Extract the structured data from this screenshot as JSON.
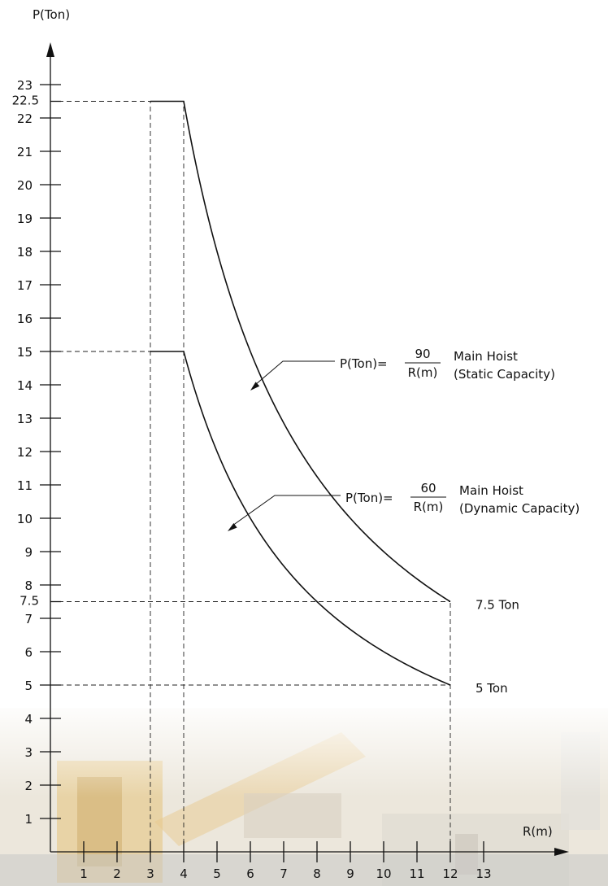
{
  "chart_data": {
    "type": "line",
    "ylabel": "P(Ton)",
    "xlabel": "R(m)",
    "xlim": [
      0,
      14
    ],
    "ylim": [
      0,
      24
    ],
    "x_ticks": [
      1,
      2,
      3,
      4,
      5,
      6,
      7,
      8,
      9,
      10,
      11,
      12,
      13
    ],
    "y_ticks": [
      "1",
      "2",
      "3",
      "4",
      "5",
      "6",
      "7",
      "7.5",
      "8",
      "9",
      "10",
      "11",
      "12",
      "13",
      "14",
      "15",
      "16",
      "17",
      "18",
      "19",
      "20",
      "21",
      "22",
      "22.5",
      "23"
    ],
    "grid": false,
    "reference_lines": [
      {
        "type": "horizontal",
        "y": 22.5,
        "x_from": 0,
        "x_to": 3
      },
      {
        "type": "horizontal",
        "y": 15,
        "x_from": 0,
        "x_to": 3
      },
      {
        "type": "horizontal",
        "y": 7.5,
        "x_from": 0,
        "x_to": 12
      },
      {
        "type": "horizontal",
        "y": 5,
        "x_from": 0,
        "x_to": 12
      },
      {
        "type": "vertical",
        "x": 3,
        "y_from": 0,
        "y_to": 22.5
      },
      {
        "type": "vertical",
        "x": 4,
        "y_from": 0,
        "y_to": 22.5
      },
      {
        "type": "vertical",
        "x": 12,
        "y_from": 0,
        "y_to": 7.5
      }
    ],
    "series": [
      {
        "formula_lhs": "P(Ton)=",
        "numerator": "90",
        "denominator": "R(m)",
        "desc1": "Main Hoist",
        "desc2": "(Static Capacity)",
        "k": 90,
        "flat_from": 3,
        "flat_value": 22.5,
        "x_end": 12,
        "end_label": "7.5 Ton"
      },
      {
        "formula_lhs": "P(Ton)=",
        "numerator": "60",
        "denominator": "R(m)",
        "desc1": "Main Hoist",
        "desc2": "(Dynamic Capacity)",
        "k": 60,
        "flat_from": 3,
        "flat_value": 15,
        "x_end": 12,
        "end_label": "5 Ton"
      }
    ]
  }
}
